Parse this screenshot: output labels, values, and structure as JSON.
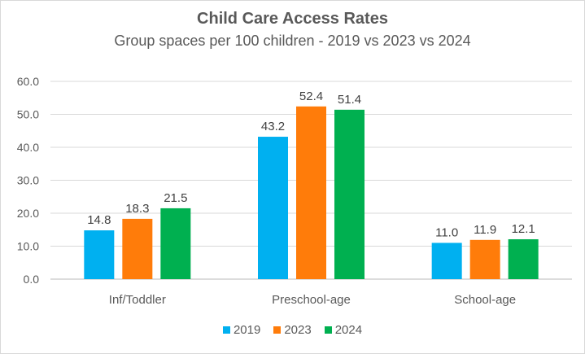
{
  "chart_data": {
    "type": "bar",
    "title": "Child Care Access Rates",
    "subtitle": "Group spaces per 100 children - 2019 vs 2023 vs 2024",
    "xlabel": "",
    "ylabel": "",
    "ylim": [
      0,
      60
    ],
    "yticks": [
      "0.0",
      "10.0",
      "20.0",
      "30.0",
      "40.0",
      "50.0",
      "60.0"
    ],
    "grid": true,
    "legend_position": "bottom",
    "categories": [
      "Inf/Toddler",
      "Preschool-age",
      "School-age"
    ],
    "series": [
      {
        "name": "2019",
        "color": "#00b0f0",
        "values": [
          14.8,
          43.2,
          11.0
        ],
        "labels": [
          "14.8",
          "43.2",
          "11.0"
        ]
      },
      {
        "name": "2023",
        "color": "#ff7c0a",
        "values": [
          18.3,
          52.4,
          11.9
        ],
        "labels": [
          "18.3",
          "52.4",
          "11.9"
        ]
      },
      {
        "name": "2024",
        "color": "#00b050",
        "values": [
          21.5,
          51.4,
          12.1
        ],
        "labels": [
          "21.5",
          "51.4",
          "12.1"
        ]
      }
    ]
  }
}
